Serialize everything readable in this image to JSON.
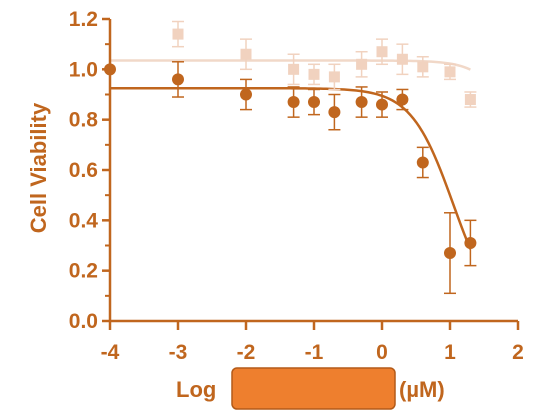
{
  "chart_data": {
    "type": "scatter",
    "title": "",
    "ylabel": "Cell Viability",
    "xlabel_prefix": "Log",
    "xlabel_suffix": "(µM)",
    "xlim": [
      -4,
      2
    ],
    "ylim": [
      0,
      1.2
    ],
    "x_ticks": [
      "-4",
      "-3",
      "-2",
      "-1",
      "0",
      "1",
      "2"
    ],
    "y_ticks": [
      "0.0",
      "0.2",
      "0.4",
      "0.6",
      "0.8",
      "1.0",
      "1.2"
    ],
    "grid": false,
    "legend": "none",
    "redaction_color": "#ee7f2e",
    "axis_color": "#c0661e",
    "series": [
      {
        "marker": "square",
        "color": "#f1d2bf",
        "line_color": "#f1d8c8",
        "points": [
          {
            "x": -3.0,
            "y": 1.14,
            "err": 0.05
          },
          {
            "x": -2.0,
            "y": 1.06,
            "err": 0.06
          },
          {
            "x": -1.3,
            "y": 1.0,
            "err": 0.06
          },
          {
            "x": -1.0,
            "y": 0.98,
            "err": 0.04
          },
          {
            "x": -0.7,
            "y": 0.97,
            "err": 0.05
          },
          {
            "x": -0.3,
            "y": 1.02,
            "err": 0.05
          },
          {
            "x": 0.0,
            "y": 1.07,
            "err": 0.05
          },
          {
            "x": 0.3,
            "y": 1.04,
            "err": 0.06
          },
          {
            "x": 0.6,
            "y": 1.01,
            "err": 0.04
          },
          {
            "x": 1.0,
            "y": 0.99,
            "err": 0.03
          },
          {
            "x": 1.3,
            "y": 0.88,
            "err": 0.03
          }
        ],
        "fit": {
          "top": 1.035,
          "bottom": 0.0,
          "log_ic50": 2.2,
          "hill": 1.6,
          "x_start": -4.0,
          "x_end": 1.3
        }
      },
      {
        "marker": "circle",
        "color": "#c0661e",
        "line_color": "#c0661e",
        "points": [
          {
            "x": -4.0,
            "y": 1.0,
            "err": 0.0
          },
          {
            "x": -3.0,
            "y": 0.96,
            "err": 0.07
          },
          {
            "x": -2.0,
            "y": 0.9,
            "err": 0.06
          },
          {
            "x": -1.3,
            "y": 0.87,
            "err": 0.06
          },
          {
            "x": -1.0,
            "y": 0.87,
            "err": 0.05
          },
          {
            "x": -0.7,
            "y": 0.83,
            "err": 0.07
          },
          {
            "x": -0.3,
            "y": 0.87,
            "err": 0.06
          },
          {
            "x": 0.0,
            "y": 0.86,
            "err": 0.05
          },
          {
            "x": 0.3,
            "y": 0.88,
            "err": 0.04
          },
          {
            "x": 0.6,
            "y": 0.63,
            "err": 0.06
          },
          {
            "x": 1.0,
            "y": 0.27,
            "err": 0.16
          },
          {
            "x": 1.3,
            "y": 0.31,
            "err": 0.09
          }
        ],
        "fit": {
          "top": 0.925,
          "bottom": 0.0,
          "log_ic50": 1.05,
          "hill": 1.4,
          "x_start": -4.0,
          "x_end": 1.3
        }
      }
    ]
  }
}
